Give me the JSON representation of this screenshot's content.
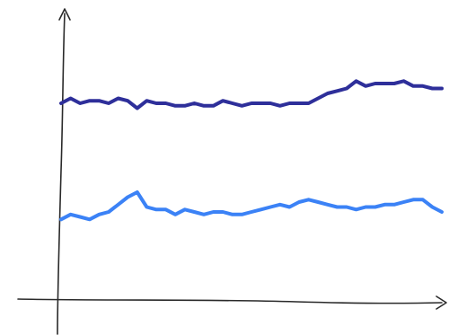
{
  "chart_data": {
    "type": "line",
    "title": "",
    "xlabel": "",
    "ylabel": "",
    "grid": false,
    "legend": "none",
    "x": [
      0,
      1,
      2,
      3,
      4,
      5,
      6,
      7,
      8,
      9,
      10,
      11,
      12,
      13,
      14,
      15,
      16,
      17,
      18,
      19,
      20,
      21,
      22,
      23,
      24,
      25,
      26,
      27,
      28,
      29,
      30,
      31,
      32,
      33,
      34,
      35,
      36,
      37,
      38,
      39,
      40
    ],
    "xlim": [
      0,
      40
    ],
    "ylim": [
      0,
      100
    ],
    "series": [
      {
        "color": "#2e2f9a",
        "values": [
          80,
          82,
          80,
          81,
          81,
          80,
          82,
          81,
          78,
          81,
          80,
          80,
          79,
          79,
          80,
          79,
          79,
          81,
          80,
          79,
          80,
          80,
          80,
          79,
          80,
          80,
          80,
          82,
          84,
          85,
          86,
          89,
          87,
          88,
          88,
          88,
          89,
          87,
          87,
          86,
          86
        ]
      },
      {
        "color": "#3b82f6",
        "values": [
          33,
          35,
          34,
          33,
          35,
          36,
          39,
          42,
          44,
          38,
          37,
          37,
          35,
          37,
          36,
          35,
          36,
          36,
          35,
          35,
          36,
          37,
          38,
          39,
          38,
          40,
          41,
          40,
          39,
          38,
          38,
          37,
          38,
          38,
          39,
          39,
          40,
          41,
          41,
          38,
          36
        ]
      }
    ]
  }
}
